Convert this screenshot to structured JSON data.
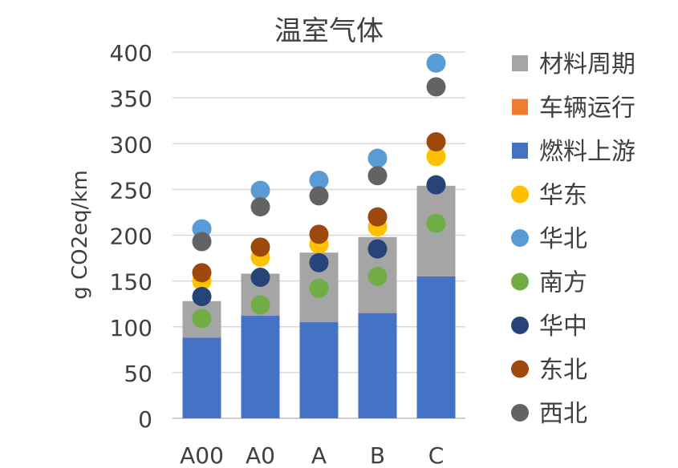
{
  "chart_data": {
    "type": "bar",
    "title": "温室气体",
    "xlabel": "",
    "ylabel": "g CO2eq/km",
    "ylim": [
      0,
      400
    ],
    "yticks": [
      0,
      50,
      100,
      150,
      200,
      250,
      300,
      350,
      400
    ],
    "grid": true,
    "legend_position": "right",
    "stacked": true,
    "categories": [
      "A00",
      "A0",
      "A",
      "B",
      "C"
    ],
    "series": [
      {
        "name": "燃料上游",
        "kind": "bar",
        "color": "#4472C4",
        "values": [
          88,
          112,
          105,
          115,
          155
        ]
      },
      {
        "name": "车辆运行",
        "kind": "bar",
        "color": "#ED7D31",
        "values": [
          0,
          0,
          0,
          0,
          0
        ]
      },
      {
        "name": "材料周期",
        "kind": "bar",
        "color": "#A5A5A5",
        "values": [
          40,
          46,
          76,
          83,
          99
        ]
      },
      {
        "name": "华东",
        "kind": "point",
        "color": "#FFC000",
        "values": [
          150,
          176,
          190,
          209,
          286
        ]
      },
      {
        "name": "华北",
        "kind": "point",
        "color": "#5B9BD5",
        "values": [
          207,
          249,
          260,
          284,
          388
        ]
      },
      {
        "name": "南方",
        "kind": "point",
        "color": "#70AD47",
        "values": [
          109,
          124,
          142,
          155,
          213
        ]
      },
      {
        "name": "华中",
        "kind": "point",
        "color": "#264478",
        "values": [
          133,
          154,
          170,
          185,
          255
        ]
      },
      {
        "name": "东北",
        "kind": "point",
        "color": "#9E480E",
        "values": [
          159,
          187,
          201,
          220,
          302
        ]
      },
      {
        "name": "西北",
        "kind": "point",
        "color": "#636363",
        "values": [
          193,
          231,
          243,
          265,
          362
        ]
      }
    ],
    "legend_order": [
      "材料周期",
      "车辆运行",
      "燃料上游",
      "华东",
      "华北",
      "南方",
      "华中",
      "东北",
      "西北"
    ]
  }
}
